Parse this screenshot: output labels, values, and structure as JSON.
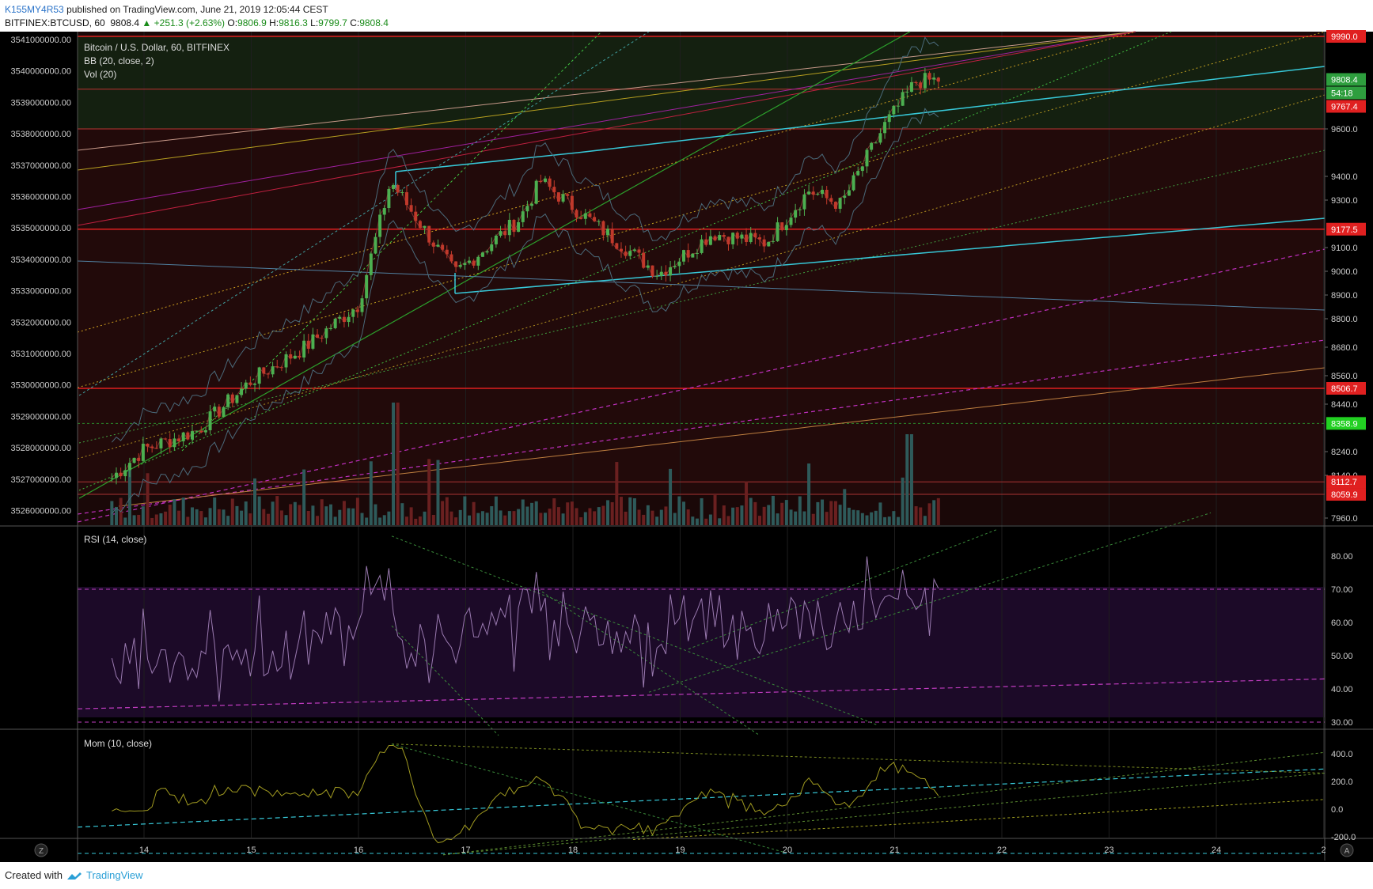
{
  "header": {
    "user": "K155MY4R53",
    "published": "published on TradingView.com, June 21, 2019 12:05:44 CEST",
    "symbol": "BITFINEX:BTCUSD, 60",
    "last": "9808.4",
    "change": "▲ +251.3 (+2.63%)",
    "o_label": "O:",
    "o_val": "9806.9",
    "h_label": "H:",
    "h_val": "9816.3",
    "l_label": "L:",
    "l_val": "9799.7",
    "c_label": "C:",
    "c_val": "9808.4"
  },
  "legend": {
    "title": "Bitcoin / U.S. Dollar, 60, BITFINEX",
    "bb": "BB (20, close, 2)",
    "vol": "Vol (20)",
    "rsi": "RSI (14, close)",
    "mom": "Mom (10, close)"
  },
  "footer": {
    "created": "Created with",
    "brand": "TradingView"
  },
  "bottom_buttons": {
    "left": "Z",
    "right": "A"
  },
  "colors": {
    "up": "#4caf50",
    "down": "#c0392b",
    "bg_main": "#0c0a05",
    "zone_red": "#2a0a0a",
    "zone_green": "#1a2a0a",
    "cyan": "#37c8d8",
    "rsi_band": "#1d0a2a",
    "magenta": "#c03cc0"
  },
  "chart_data": [
    {
      "type": "candlestick",
      "name": "BITFINEX:BTCUSD 60",
      "x_ticks": [
        "14",
        "15",
        "16",
        "17",
        "18",
        "19",
        "20",
        "21",
        "22",
        "23",
        "24",
        "2"
      ],
      "price_axis": [
        "9600.0",
        "9400.0",
        "9300.0",
        "9100.0",
        "9000.0",
        "8900.0",
        "8800.0",
        "8680.0",
        "8560.0",
        "8440.0",
        "8240.0",
        "8140.0",
        "7960.0"
      ],
      "volume_axis": [
        "3541000000.00",
        "3540000000.00",
        "3539000000.00",
        "3538000000.00",
        "3537000000.00",
        "3536000000.00",
        "3535000000.00",
        "3534000000.00",
        "3533000000.00",
        "3532000000.00",
        "3531000000.00",
        "3530000000.00",
        "3529000000.00",
        "3528000000.00",
        "3527000000.00",
        "3526000000.00"
      ],
      "price_labels": [
        {
          "text": "9990.0",
          "color": "#e02020"
        },
        {
          "text": "9808.4",
          "color": "#2e9e3e"
        },
        {
          "text": "54:18",
          "color": "#2e9e3e"
        },
        {
          "text": "9767.4",
          "color": "#e02020"
        },
        {
          "text": "9177.5",
          "color": "#e02020"
        },
        {
          "text": "8506.7",
          "color": "#e02020"
        },
        {
          "text": "8358.9",
          "color": "#22d022"
        },
        {
          "text": "8112.7",
          "color": "#e02020"
        },
        {
          "text": "8059.9",
          "color": "#e02020"
        }
      ],
      "candles_sample": [
        {
          "day": "13.7",
          "c": 8130
        },
        {
          "day": "14.0",
          "c": 8250
        },
        {
          "day": "14.5",
          "c": 8330
        },
        {
          "day": "15.0",
          "c": 8540
        },
        {
          "day": "15.5",
          "c": 8680
        },
        {
          "day": "16.0",
          "c": 8860
        },
        {
          "day": "16.3",
          "c": 9380
        },
        {
          "day": "16.9",
          "c": 8990
        },
        {
          "day": "17.5",
          "c": 9220
        },
        {
          "day": "17.7",
          "c": 9380
        },
        {
          "day": "18.2",
          "c": 9200
        },
        {
          "day": "18.8",
          "c": 8990
        },
        {
          "day": "19.3",
          "c": 9160
        },
        {
          "day": "19.8",
          "c": 9120
        },
        {
          "day": "20.2",
          "c": 9340
        },
        {
          "day": "20.5",
          "c": 9280
        },
        {
          "day": "20.9",
          "c": 9610
        },
        {
          "day": "21.2",
          "c": 9800
        },
        {
          "day": "21.45",
          "c": 9808.4
        }
      ]
    },
    {
      "type": "line",
      "name": "RSI (14, close)",
      "y_ticks": [
        "80.00",
        "70.00",
        "60.00",
        "50.00",
        "40.00",
        "30.00"
      ],
      "overbought": 70,
      "oversold": 30
    },
    {
      "type": "line",
      "name": "Mom (10, close)",
      "y_ticks": [
        "400.0",
        "200.0",
        "0.0",
        "-200.0"
      ]
    }
  ]
}
